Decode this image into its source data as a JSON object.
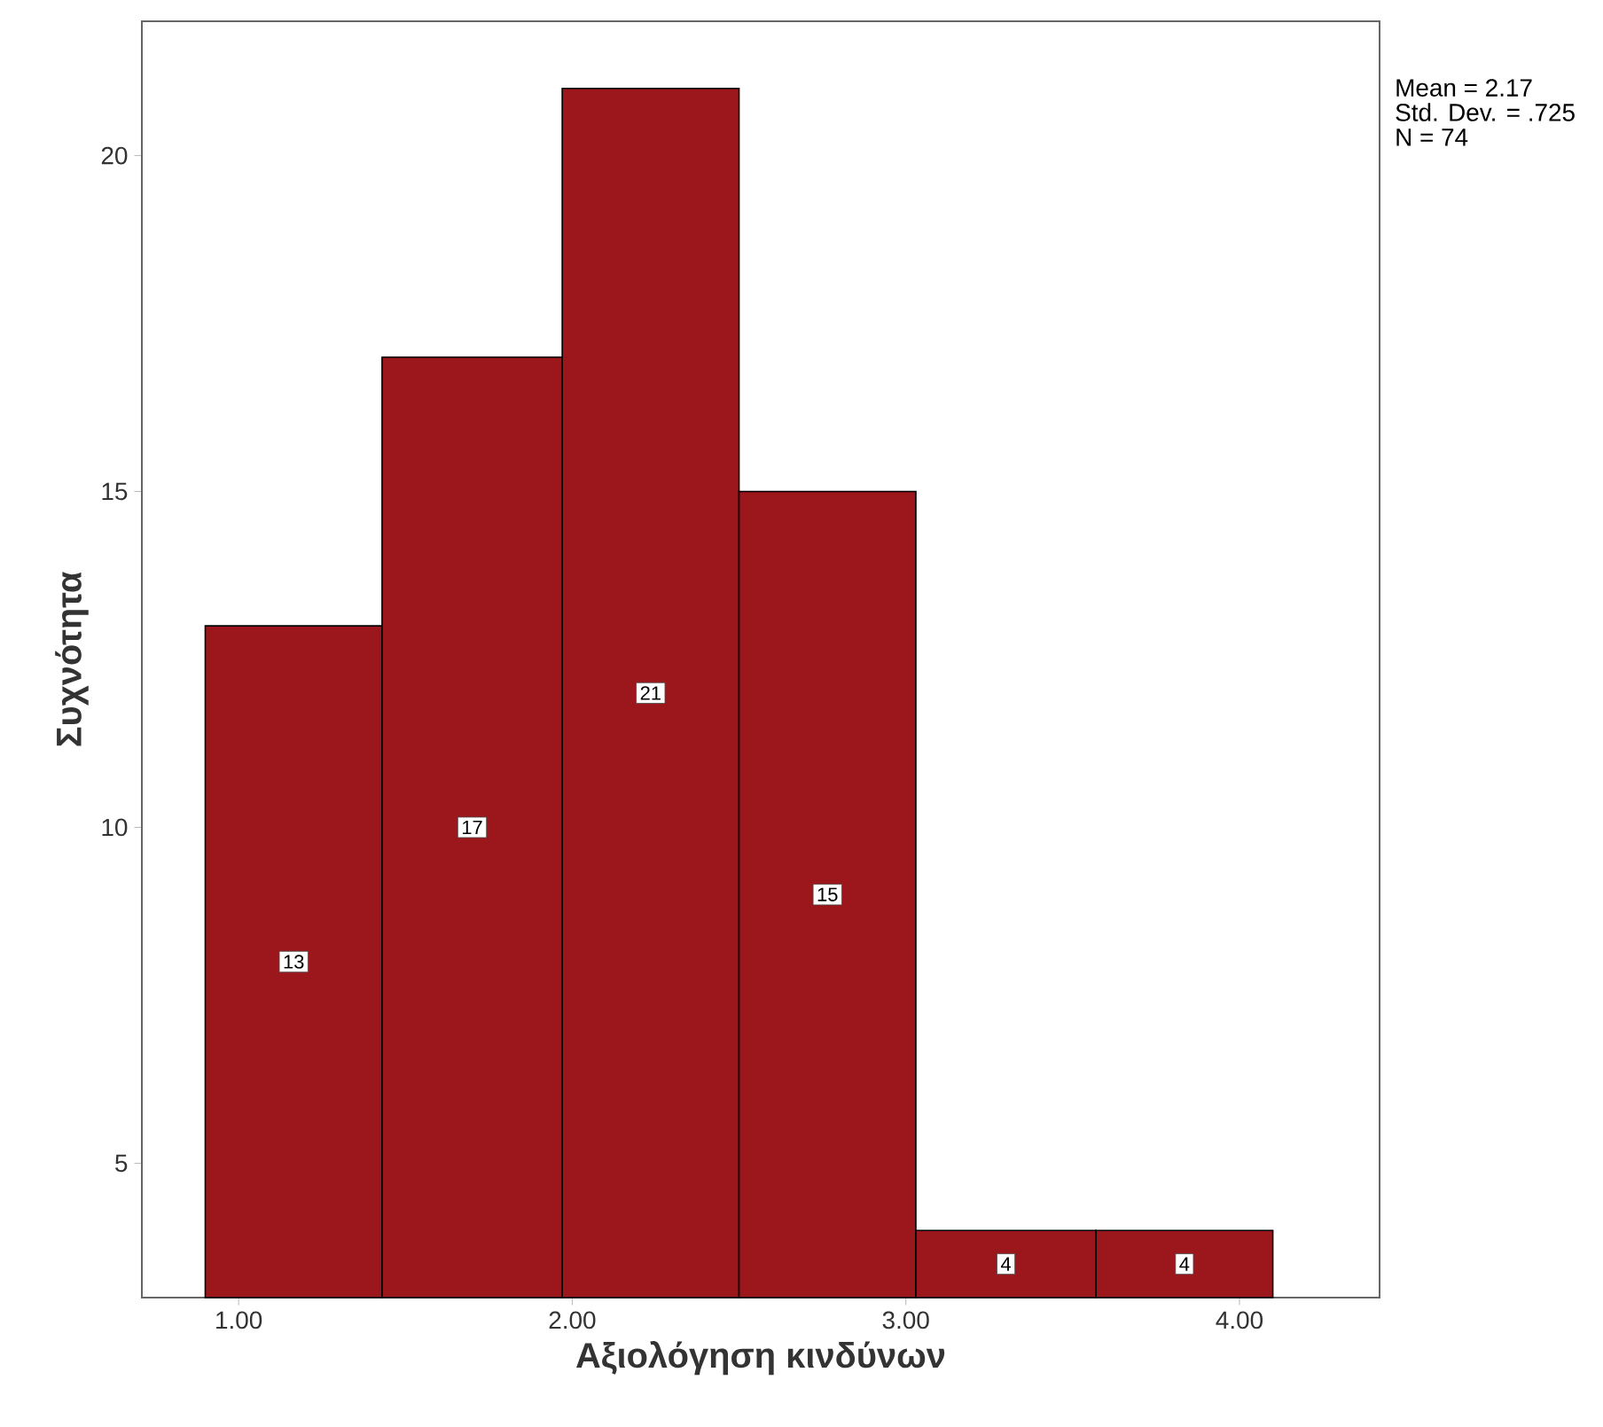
{
  "chart_data": {
    "type": "histogram",
    "xlabel": "Αξιολόγηση κινδύνων",
    "ylabel": "Συχνότητα",
    "bins": [
      0.9,
      1.43,
      1.97,
      2.5,
      3.03,
      3.57,
      4.1
    ],
    "values": [
      13,
      17,
      21,
      15,
      4,
      4
    ],
    "color": "#9b171c",
    "data_labels": true,
    "xlim": [
      0.71,
      4.42
    ],
    "ylim": [
      3,
      22
    ],
    "xticks": [
      {
        "value": 1,
        "label": "1.00"
      },
      {
        "value": 2,
        "label": "2.00"
      },
      {
        "value": 3,
        "label": "3.00"
      },
      {
        "value": 4,
        "label": "4.00"
      }
    ],
    "yticks": [
      5,
      10,
      15,
      20
    ],
    "grid": false,
    "annotations": [
      "Mean = 2.17",
      "Std. Dev. = .725",
      "N = 74"
    ]
  }
}
